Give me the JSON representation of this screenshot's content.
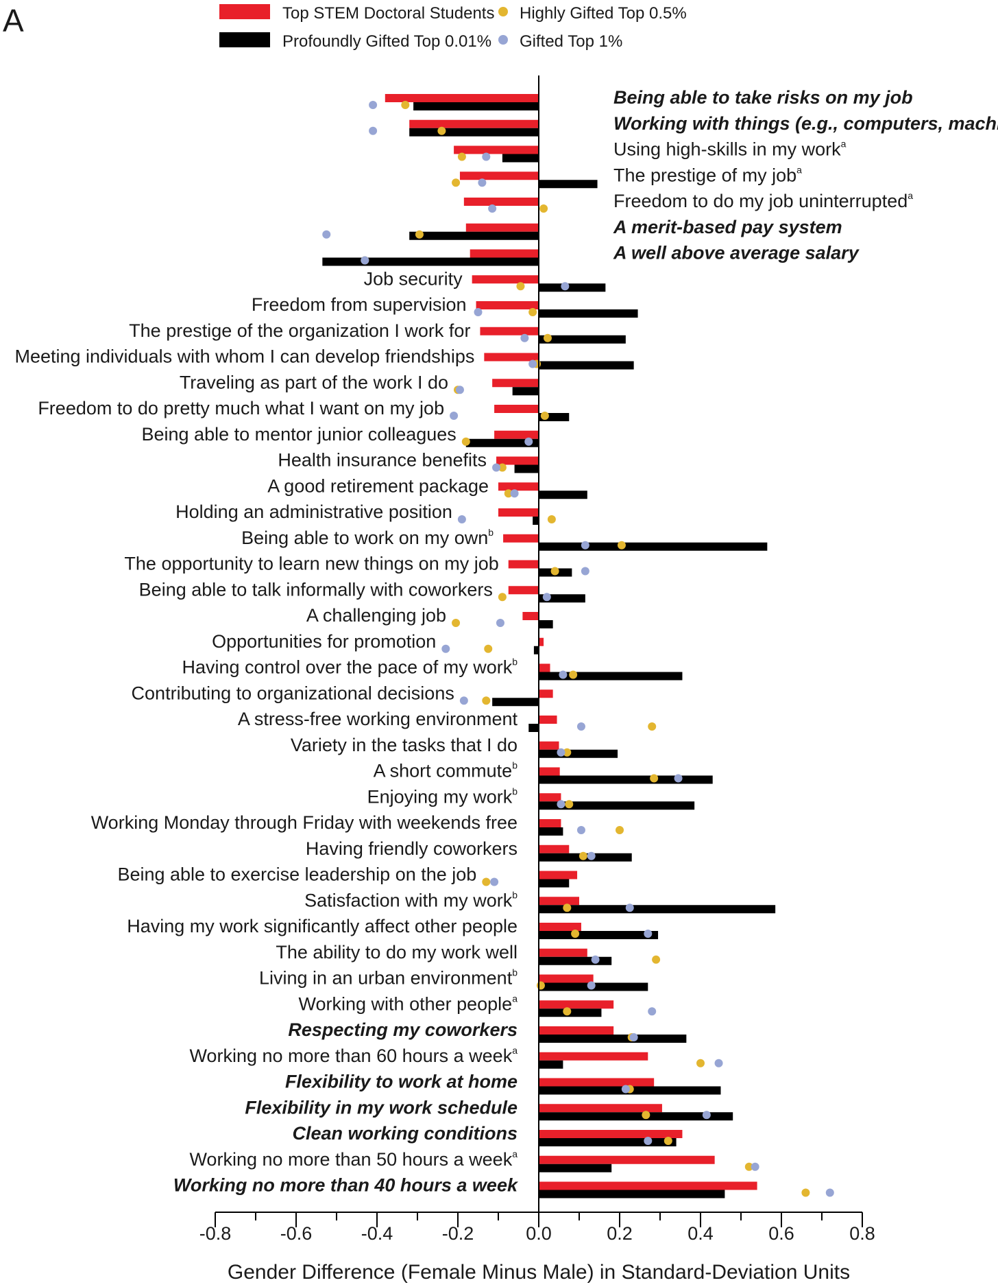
{
  "panel_label": "A",
  "chart_data": {
    "type": "bar",
    "orientation": "horizontal",
    "xlabel": "Gender Difference (Female Minus Male) in Standard-Deviation Units",
    "xlim": [
      -0.8,
      0.8
    ],
    "xticks": [
      "-0.8",
      "-0.6",
      "-0.4",
      "-0.2",
      "0.0",
      "0.2",
      "0.4",
      "0.6",
      "0.8"
    ],
    "legend": [
      {
        "name": "Top STEM Doctoral Students",
        "marker": "bar",
        "color": "#e8202a"
      },
      {
        "name": "Profoundly Gifted Top 0.01%",
        "marker": "bar",
        "color": "#000000"
      },
      {
        "name": "Highly Gifted Top 0.5%",
        "marker": "dot",
        "color": "#e3b630"
      },
      {
        "name": "Gifted Top 1%",
        "marker": "dot",
        "color": "#97a5d4"
      }
    ],
    "legend_position": "top",
    "rows": [
      {
        "label": "Being able to take risks on my job",
        "bold": true,
        "stem": -0.38,
        "pg": -0.31,
        "hg": -0.33,
        "g": -0.41
      },
      {
        "label": "Working with things (e.g., computers, machines)",
        "bold": true,
        "stem": -0.32,
        "pg": -0.32,
        "hg": -0.24,
        "g": -0.41
      },
      {
        "label": "Using high-skills in my work",
        "sup": "a",
        "stem": -0.21,
        "pg": -0.09,
        "hg": -0.19,
        "g": -0.13
      },
      {
        "label": "The prestige of my job",
        "sup": "a",
        "stem": -0.195,
        "pg": 0.145,
        "hg": -0.205,
        "g": -0.14
      },
      {
        "label": "Freedom to do my job uninterrupted",
        "sup": "a",
        "stem": -0.185,
        "pg": 0.0,
        "hg": 0.012,
        "g": -0.115
      },
      {
        "label": "A merit-based pay system",
        "bold": true,
        "stem": -0.18,
        "pg": -0.32,
        "hg": -0.295,
        "g": -0.525
      },
      {
        "label": "A well above average salary",
        "bold": true,
        "stem": -0.17,
        "pg": -0.535,
        "hg": -0.43,
        "g": -0.43
      },
      {
        "label": "Job security",
        "stem": -0.165,
        "pg": 0.165,
        "hg": -0.045,
        "g": 0.065
      },
      {
        "label": "Freedom from supervision",
        "stem": -0.155,
        "pg": 0.245,
        "hg": -0.015,
        "g": -0.15
      },
      {
        "label": "The prestige of the organization I work for",
        "stem": -0.145,
        "pg": 0.215,
        "hg": 0.022,
        "g": -0.035
      },
      {
        "label": "Meeting individuals with whom I can develop friendships",
        "stem": -0.135,
        "pg": 0.235,
        "hg": -0.005,
        "g": -0.015
      },
      {
        "label": "Traveling as part of the work I do",
        "stem": -0.115,
        "pg": -0.065,
        "hg": -0.2,
        "g": -0.195
      },
      {
        "label": "Freedom to do pretty much what I want on my job",
        "stem": -0.11,
        "pg": 0.075,
        "hg": 0.015,
        "g": -0.21
      },
      {
        "label": "Being able to mentor junior colleagues",
        "stem": -0.11,
        "pg": -0.18,
        "hg": -0.18,
        "g": -0.025
      },
      {
        "label": "Health insurance benefits",
        "stem": -0.105,
        "pg": -0.06,
        "hg": -0.09,
        "g": -0.105
      },
      {
        "label": "A good retirement package",
        "stem": -0.1,
        "pg": 0.12,
        "hg": -0.075,
        "g": -0.06
      },
      {
        "label": "Holding an administrative position",
        "stem": -0.1,
        "pg": -0.015,
        "hg": 0.032,
        "g": -0.19
      },
      {
        "label": "Being able to work on my own",
        "sup": "b",
        "stem": -0.088,
        "pg": 0.565,
        "hg": 0.205,
        "g": 0.115
      },
      {
        "label": "The opportunity to learn new things on my job",
        "stem": -0.075,
        "pg": 0.082,
        "hg": 0.04,
        "g": 0.115
      },
      {
        "label": "Being able to talk informally with coworkers",
        "stem": -0.075,
        "pg": 0.115,
        "hg": -0.09,
        "g": 0.02
      },
      {
        "label": "A challenging job",
        "stem": -0.04,
        "pg": 0.035,
        "hg": -0.205,
        "g": -0.095
      },
      {
        "label": "Opportunities for promotion",
        "stem": 0.012,
        "pg": -0.012,
        "hg": -0.125,
        "g": -0.23
      },
      {
        "label": "Having control over the pace of my work",
        "sup": "b",
        "stem": 0.028,
        "pg": 0.355,
        "hg": 0.085,
        "g": 0.06
      },
      {
        "label": "Contributing to organizational decisions",
        "stem": 0.035,
        "pg": -0.115,
        "hg": -0.13,
        "g": -0.185
      },
      {
        "label": "A stress-free working environment",
        "stem": 0.045,
        "pg": -0.025,
        "hg": 0.28,
        "g": 0.105
      },
      {
        "label": "Variety in the tasks that I do",
        "stem": 0.05,
        "pg": 0.195,
        "hg": 0.07,
        "g": 0.055
      },
      {
        "label": "A short commute",
        "sup": "b",
        "stem": 0.052,
        "pg": 0.43,
        "hg": 0.285,
        "g": 0.345
      },
      {
        "label": "Enjoying my work",
        "sup": "b",
        "stem": 0.055,
        "pg": 0.385,
        "hg": 0.075,
        "g": 0.055
      },
      {
        "label": "Working Monday through Friday with weekends free",
        "stem": 0.055,
        "pg": 0.06,
        "hg": 0.2,
        "g": 0.105
      },
      {
        "label": "Having friendly coworkers",
        "stem": 0.075,
        "pg": 0.23,
        "hg": 0.11,
        "g": 0.13
      },
      {
        "label": "Being able to exercise leadership on the job",
        "stem": 0.095,
        "pg": 0.075,
        "hg": -0.13,
        "g": -0.11
      },
      {
        "label": "Satisfaction with my work",
        "sup": "b",
        "stem": 0.1,
        "pg": 0.585,
        "hg": 0.07,
        "g": 0.225
      },
      {
        "label": "Having my work significantly affect other people",
        "stem": 0.105,
        "pg": 0.295,
        "hg": 0.09,
        "g": 0.27
      },
      {
        "label": "The ability to do my work well",
        "stem": 0.12,
        "pg": 0.18,
        "hg": 0.29,
        "g": 0.14
      },
      {
        "label": "Living in an urban environment",
        "sup": "b",
        "stem": 0.135,
        "pg": 0.27,
        "hg": 0.005,
        "g": 0.13
      },
      {
        "label": "Working with other people",
        "sup": "a",
        "stem": 0.185,
        "pg": 0.155,
        "hg": 0.07,
        "g": 0.28
      },
      {
        "label": "Respecting my coworkers",
        "bold": true,
        "stem": 0.185,
        "pg": 0.365,
        "hg": 0.23,
        "g": 0.235
      },
      {
        "label": "Working no more than 60 hours a week",
        "sup": "a",
        "stem": 0.27,
        "pg": 0.06,
        "hg": 0.4,
        "g": 0.445
      },
      {
        "label": "Flexibility to work at home",
        "bold": true,
        "stem": 0.285,
        "pg": 0.45,
        "hg": 0.225,
        "g": 0.215
      },
      {
        "label": "Flexibility in my work schedule",
        "bold": true,
        "stem": 0.305,
        "pg": 0.48,
        "hg": 0.265,
        "g": 0.415
      },
      {
        "label": "Clean working conditions",
        "bold": true,
        "stem": 0.355,
        "pg": 0.34,
        "hg": 0.32,
        "g": 0.27
      },
      {
        "label": "Working no more than 50 hours a week",
        "sup": "a",
        "stem": 0.435,
        "pg": 0.18,
        "hg": 0.52,
        "g": 0.535
      },
      {
        "label": "Working no more than 40 hours a week",
        "bold": true,
        "stem": 0.54,
        "pg": 0.46,
        "hg": 0.66,
        "g": 0.72
      }
    ]
  }
}
